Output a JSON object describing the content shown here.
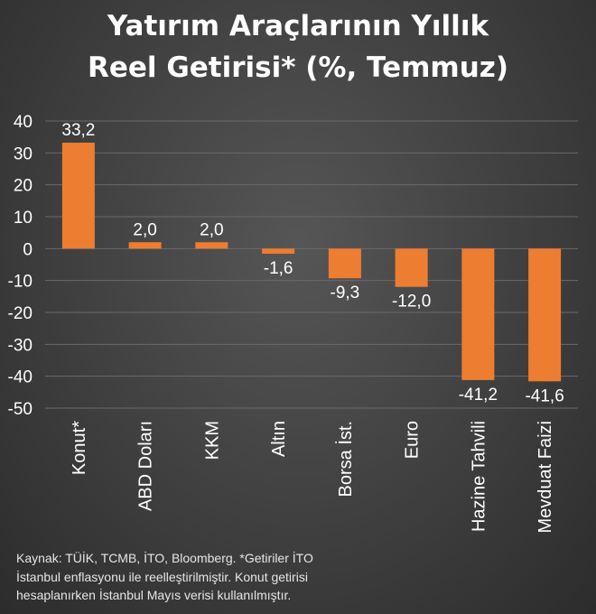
{
  "title_line1": "Yatırım Araçlarının Yıllık",
  "title_line2": "Reel Getirisi* (%, Temmuz)",
  "source_line1": "Kaynak: TÜİK, TCMB, İTO, Bloomberg. *Getiriler İTO",
  "source_line2": "İstanbul enflasyonu ile reelleştirilmiştir. Konut getirisi",
  "source_line3": "hesaplanırken İstanbul Mayıs verisi kullanılmıştır.",
  "chart_data": {
    "type": "bar",
    "title": "Yatırım Araçlarının Yıllık Reel Getirisi* (%, Temmuz)",
    "categories": [
      "Konut*",
      "ABD Doları",
      "KKM",
      "Altın",
      "Borsa İst.",
      "Euro",
      "Hazine Tahvili",
      "Mevduat Faizi"
    ],
    "values": [
      33.2,
      2.0,
      2.0,
      -1.6,
      -9.3,
      -12.0,
      -41.2,
      -41.6
    ],
    "value_labels": [
      "33,2",
      "2,0",
      "2,0",
      "-1,6",
      "-9,3",
      "-12,0",
      "-41,2",
      "-41,6"
    ],
    "ylim": [
      -50,
      40
    ],
    "yticks": [
      40,
      30,
      20,
      10,
      0,
      -10,
      -20,
      -30,
      -40,
      -50
    ],
    "grid": true,
    "bar_color": "#ED7D31",
    "grid_color": "#6a6a6a"
  }
}
